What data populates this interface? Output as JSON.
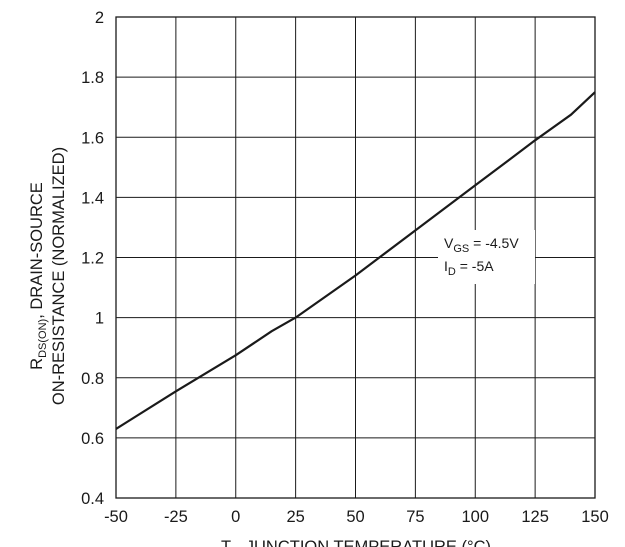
{
  "chart_data": {
    "type": "line",
    "x_ticks": [
      "-50",
      "-25",
      "0",
      "25",
      "50",
      "75",
      "100",
      "125",
      "150"
    ],
    "y_ticks": [
      "0.4",
      "0.6",
      "0.8",
      "1",
      "1.2",
      "1.4",
      "1.6",
      "1.8",
      "2"
    ],
    "xlim": [
      -50,
      150
    ],
    "ylim": [
      0.4,
      2.0
    ],
    "grid": true,
    "xlabel": {
      "main": "T",
      "sub": "J",
      "rest": ", JUNCTION TEMPERATURE (°C)"
    },
    "ylabel": {
      "line1_main": "R",
      "line1_sub": "DS(ON)",
      "line1_rest": ", DRAIN-SOURCE",
      "line2": "ON-RESISTANCE (NORMALIZED)"
    },
    "annotation": {
      "line1_main": "V",
      "line1_sub": "GS",
      "line1_rest": " = -4.5V",
      "line2_main": "I",
      "line2_sub": "D",
      "line2_rest": " = -5A"
    },
    "series": [
      {
        "x": [
          -50,
          -25,
          0,
          15,
          25,
          50,
          75,
          100,
          125,
          140,
          150
        ],
        "y": [
          0.63,
          0.755,
          0.875,
          0.955,
          1.0,
          1.14,
          1.29,
          1.44,
          1.59,
          1.675,
          1.75
        ]
      }
    ]
  }
}
